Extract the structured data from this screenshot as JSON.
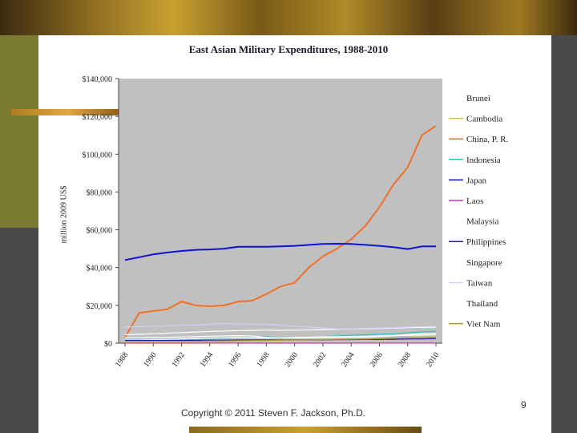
{
  "footer": {
    "copyright": "Copyright © 2011 Steven F. Jackson, Ph.D.",
    "page_number": "9"
  },
  "chart_data": {
    "type": "line",
    "title": "East Asian Military Expenditures, 1988-2010",
    "xlabel": "",
    "ylabel": "million 2009 US$",
    "x": [
      1988,
      1989,
      1990,
      1991,
      1992,
      1993,
      1994,
      1995,
      1996,
      1997,
      1998,
      1999,
      2000,
      2001,
      2002,
      2003,
      2004,
      2005,
      2006,
      2007,
      2008,
      2009,
      2010
    ],
    "ylim": [
      0,
      140000
    ],
    "y_ticks": [
      "$0",
      "$20,000",
      "$40,000",
      "$60,000",
      "$80,000",
      "$100,000",
      "$120,000",
      "$140,000"
    ],
    "y_tick_values": [
      0,
      20000,
      40000,
      60000,
      80000,
      100000,
      120000,
      140000
    ],
    "x_ticks": [
      "1988",
      "1990",
      "1992",
      "1994",
      "1996",
      "1998",
      "2000",
      "2002",
      "2004",
      "2006",
      "2008",
      "2010"
    ],
    "legend_position": "right",
    "series": [
      {
        "name": "Brunei",
        "color": "#ffffff",
        "values": [
          300,
          300,
          300,
          300,
          300,
          300,
          300,
          300,
          300,
          300,
          300,
          300,
          300,
          300,
          300,
          300,
          300,
          300,
          300,
          300,
          300,
          300,
          300
        ]
      },
      {
        "name": "Cambodia",
        "color": "#c8c832",
        "values": [
          200,
          200,
          200,
          200,
          200,
          200,
          200,
          200,
          200,
          200,
          200,
          200,
          200,
          200,
          200,
          200,
          200,
          200,
          200,
          200,
          200,
          200,
          200
        ]
      },
      {
        "name": "China, P. R.",
        "color": "#f07028",
        "values": [
          3000,
          16000,
          17000,
          18000,
          22000,
          20000,
          19500,
          20000,
          22000,
          22500,
          26000,
          30000,
          32000,
          40000,
          46000,
          50000,
          55000,
          62000,
          72000,
          84000,
          93000,
          110000,
          115000
        ]
      },
      {
        "name": "Indonesia",
        "color": "#30c0c0",
        "values": [
          2000,
          2000,
          2000,
          2000,
          2000,
          2000,
          2200,
          2500,
          3000,
          3500,
          3500,
          3000,
          3000,
          3200,
          3500,
          3800,
          4200,
          4500,
          4800,
          5000,
          5500,
          6000,
          6200
        ]
      },
      {
        "name": "Japan",
        "color": "#1010d0",
        "values": [
          44000,
          45500,
          47000,
          48000,
          48800,
          49400,
          49600,
          50000,
          51000,
          51000,
          51000,
          51200,
          51500,
          52000,
          52500,
          52600,
          52500,
          52000,
          51500,
          50800,
          49800,
          51200,
          51200
        ]
      },
      {
        "name": "Laos",
        "color": "#c030c0",
        "values": [
          100,
          100,
          100,
          100,
          100,
          100,
          100,
          100,
          100,
          100,
          100,
          100,
          100,
          100,
          100,
          100,
          100,
          100,
          100,
          100,
          100,
          100,
          100
        ]
      },
      {
        "name": "Malaysia",
        "color": "#ffffff",
        "values": [
          1800,
          1800,
          1900,
          2000,
          2200,
          2400,
          2600,
          2800,
          3000,
          3000,
          2800,
          2800,
          3000,
          3200,
          3400,
          3500,
          3600,
          3600,
          3800,
          4000,
          4200,
          4300,
          4400
        ]
      },
      {
        "name": "Philippines",
        "color": "#2020a0",
        "values": [
          1500,
          1500,
          1500,
          1500,
          1500,
          1500,
          1600,
          1600,
          1700,
          1700,
          1800,
          1800,
          1800,
          1800,
          1800,
          1900,
          1900,
          2000,
          2000,
          2100,
          2200,
          2300,
          2400
        ]
      },
      {
        "name": "Singapore",
        "color": "#ffffff",
        "values": [
          4500,
          4700,
          5000,
          5300,
          5600,
          5900,
          6200,
          6400,
          6600,
          6800,
          7000,
          6800,
          6900,
          7000,
          7200,
          7300,
          7500,
          7600,
          7800,
          8000,
          8200,
          8300,
          8400
        ]
      },
      {
        "name": "Taiwan",
        "color": "#d0d0ff",
        "values": [
          8500,
          8800,
          9000,
          9200,
          9500,
          9600,
          10000,
          10500,
          10200,
          10000,
          10000,
          9500,
          9000,
          8500,
          8000,
          7500,
          7500,
          7800,
          8000,
          8200,
          8500,
          8800,
          9000
        ]
      },
      {
        "name": "Thailand",
        "color": "#ffffff",
        "values": [
          2800,
          2900,
          3000,
          3100,
          3300,
          3500,
          3700,
          3900,
          4000,
          3800,
          3000,
          2800,
          2800,
          2900,
          3000,
          3000,
          3100,
          3200,
          3600,
          4000,
          4600,
          5000,
          5200
        ]
      },
      {
        "name": "Viet Nam",
        "color": "#a0a020",
        "values": [
          1000,
          1000,
          1000,
          1000,
          1000,
          1000,
          1100,
          1200,
          1300,
          1400,
          1500,
          1600,
          1700,
          1800,
          1900,
          2000,
          2100,
          2200,
          2400,
          2600,
          2800,
          3000,
          3200
        ]
      }
    ]
  }
}
